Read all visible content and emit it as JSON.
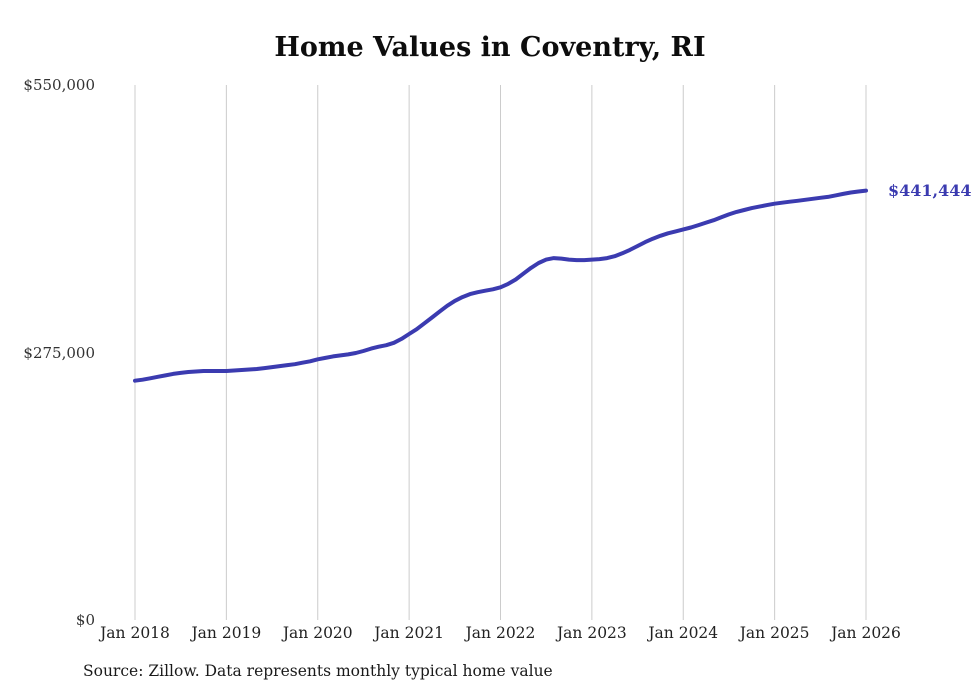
{
  "chart_data": {
    "type": "line",
    "title": "Home Values in Coventry, RI",
    "source_note": "Source: Zillow. Data represents monthly typical home value",
    "end_label": "$441,444",
    "end_value": 441444,
    "line_color": "#3b3bb0",
    "gridline_color": "#cccccc",
    "axis_text_color": "#333333",
    "ylim": [
      0,
      550000
    ],
    "grid": "vertical-only",
    "legend": "none",
    "frequency": "monthly",
    "x_tick_labels": [
      "Jan 2018",
      "Jan 2019",
      "Jan 2020",
      "Jan 2021",
      "Jan 2022",
      "Jan 2023",
      "Jan 2024",
      "Jan 2025",
      "Jan 2026"
    ],
    "y_ticks": [
      {
        "label": "$550,000",
        "value": 550000
      },
      {
        "label": "$275,000",
        "value": 275000
      },
      {
        "label": "$0",
        "value": 0
      }
    ],
    "series_name": "Typical home value",
    "x_start": "Jan 2018",
    "x_end": "Jan 2026",
    "values": [
      246000,
      247000,
      248500,
      250000,
      251500,
      253000,
      254000,
      255000,
      255500,
      256000,
      256000,
      256000,
      256000,
      256500,
      257000,
      257500,
      258000,
      259000,
      260000,
      261000,
      262000,
      263000,
      264500,
      266000,
      268000,
      269500,
      271000,
      272000,
      273000,
      274500,
      276500,
      279000,
      281000,
      282500,
      285000,
      289000,
      294000,
      299000,
      305000,
      311000,
      317000,
      323000,
      328000,
      332000,
      335000,
      337000,
      338500,
      340000,
      342000,
      345500,
      350000,
      356000,
      362000,
      367000,
      370500,
      372000,
      371500,
      370500,
      370000,
      370000,
      370500,
      371000,
      372000,
      374000,
      377000,
      380500,
      384500,
      388500,
      392000,
      395000,
      397500,
      399500,
      401500,
      403500,
      406000,
      408500,
      411000,
      414000,
      417000,
      419500,
      421500,
      423500,
      425000,
      426500,
      428000,
      429000,
      430000,
      431000,
      432000,
      433000,
      434000,
      435000,
      436500,
      438000,
      439500,
      440500,
      441444
    ]
  }
}
